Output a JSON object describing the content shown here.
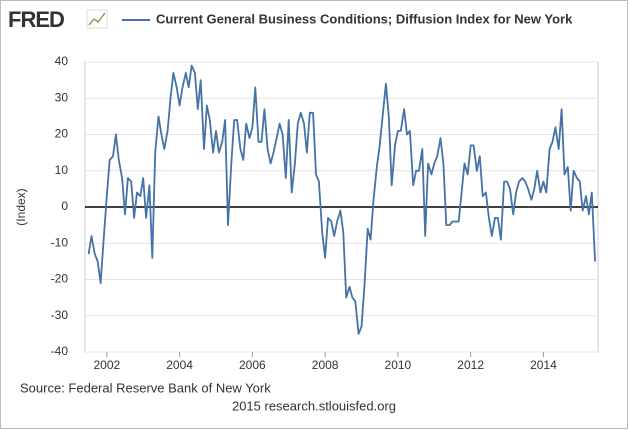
{
  "chart_data": {
    "type": "line",
    "logo": "FRED",
    "ylabel": "(Index)",
    "source": "Source: Federal Reserve Bank of New York",
    "footer": "2015 research.stlouisfed.org",
    "xlim": [
      2001.4,
      2015.5
    ],
    "xticks": [
      2002,
      2004,
      2006,
      2008,
      2010,
      2012,
      2014
    ],
    "ylim": [
      -40,
      40
    ],
    "yticks": [
      -40,
      -30,
      -20,
      -10,
      0,
      10,
      20,
      30,
      40
    ],
    "grid": true,
    "reference_line": 0,
    "x": [
      2001.5,
      2001.58,
      2001.67,
      2001.75,
      2001.83,
      2001.92,
      2002.0,
      2002.08,
      2002.17,
      2002.25,
      2002.33,
      2002.42,
      2002.5,
      2002.58,
      2002.67,
      2002.75,
      2002.83,
      2002.92,
      2003.0,
      2003.08,
      2003.17,
      2003.25,
      2003.33,
      2003.42,
      2003.5,
      2003.58,
      2003.67,
      2003.75,
      2003.83,
      2003.92,
      2004.0,
      2004.08,
      2004.17,
      2004.25,
      2004.33,
      2004.42,
      2004.5,
      2004.58,
      2004.67,
      2004.75,
      2004.83,
      2004.92,
      2005.0,
      2005.08,
      2005.17,
      2005.25,
      2005.33,
      2005.42,
      2005.5,
      2005.58,
      2005.67,
      2005.75,
      2005.83,
      2005.92,
      2006.0,
      2006.08,
      2006.17,
      2006.25,
      2006.33,
      2006.42,
      2006.5,
      2006.58,
      2006.67,
      2006.75,
      2006.83,
      2006.92,
      2007.0,
      2007.08,
      2007.17,
      2007.25,
      2007.33,
      2007.42,
      2007.5,
      2007.58,
      2007.67,
      2007.75,
      2007.83,
      2007.92,
      2008.0,
      2008.08,
      2008.17,
      2008.25,
      2008.33,
      2008.42,
      2008.5,
      2008.58,
      2008.67,
      2008.75,
      2008.83,
      2008.92,
      2009.0,
      2009.08,
      2009.17,
      2009.25,
      2009.33,
      2009.42,
      2009.5,
      2009.58,
      2009.67,
      2009.75,
      2009.83,
      2009.92,
      2010.0,
      2010.08,
      2010.17,
      2010.25,
      2010.33,
      2010.42,
      2010.5,
      2010.58,
      2010.67,
      2010.75,
      2010.83,
      2010.92,
      2011.0,
      2011.08,
      2011.17,
      2011.25,
      2011.33,
      2011.42,
      2011.5,
      2011.58,
      2011.67,
      2011.75,
      2011.83,
      2011.92,
      2012.0,
      2012.08,
      2012.17,
      2012.25,
      2012.33,
      2012.42,
      2012.5,
      2012.58,
      2012.67,
      2012.75,
      2012.83,
      2012.92,
      2013.0,
      2013.08,
      2013.17,
      2013.25,
      2013.33,
      2013.42,
      2013.5,
      2013.58,
      2013.67,
      2013.75,
      2013.83,
      2013.92,
      2014.0,
      2014.08,
      2014.17,
      2014.25,
      2014.33,
      2014.42,
      2014.5,
      2014.58,
      2014.67,
      2014.75,
      2014.83,
      2014.92,
      2015.0,
      2015.08,
      2015.17,
      2015.25,
      2015.33,
      2015.42
    ],
    "series": [
      {
        "name": "Current General Business Conditions; Diffusion Index for New York",
        "color": "#4572a7",
        "values": [
          -13,
          -8,
          -13,
          -15,
          -21,
          -8,
          3,
          13,
          14,
          20,
          13,
          8,
          -2,
          8,
          7,
          -3,
          4,
          3,
          8,
          -3,
          6,
          -14,
          15,
          25,
          20,
          16,
          21,
          30,
          37,
          33,
          28,
          33,
          37,
          33,
          39,
          37,
          27,
          35,
          16,
          28,
          24,
          15,
          21,
          15,
          18,
          24,
          -5,
          12,
          24,
          24,
          16,
          13,
          23,
          19,
          22,
          33,
          18,
          18,
          27,
          16,
          12,
          15,
          19,
          23,
          20,
          8,
          24,
          4,
          12,
          23,
          26,
          23,
          15,
          26,
          26,
          9,
          7,
          -7,
          -14,
          -3,
          -4,
          -8,
          -4,
          -1,
          -7,
          -25,
          -22,
          -25,
          -26,
          -35,
          -33,
          -22,
          -6,
          -9,
          2,
          11,
          17,
          25,
          34,
          25,
          6,
          17,
          21,
          21,
          27,
          20,
          21,
          6,
          10,
          10,
          16,
          -8,
          12,
          9,
          12,
          14,
          19,
          12,
          -5,
          -5,
          -4,
          -4,
          -4,
          4,
          12,
          9,
          17,
          17,
          10,
          14,
          3,
          4,
          -3,
          -8,
          -3,
          -3,
          -9,
          7,
          7,
          5,
          -2,
          4,
          7,
          8,
          7,
          5,
          2,
          5,
          10,
          4,
          7,
          4,
          16,
          18,
          22,
          16,
          27,
          9,
          11,
          -1,
          10,
          8,
          7,
          -1,
          3,
          -2,
          4,
          -15
        ]
      }
    ]
  }
}
